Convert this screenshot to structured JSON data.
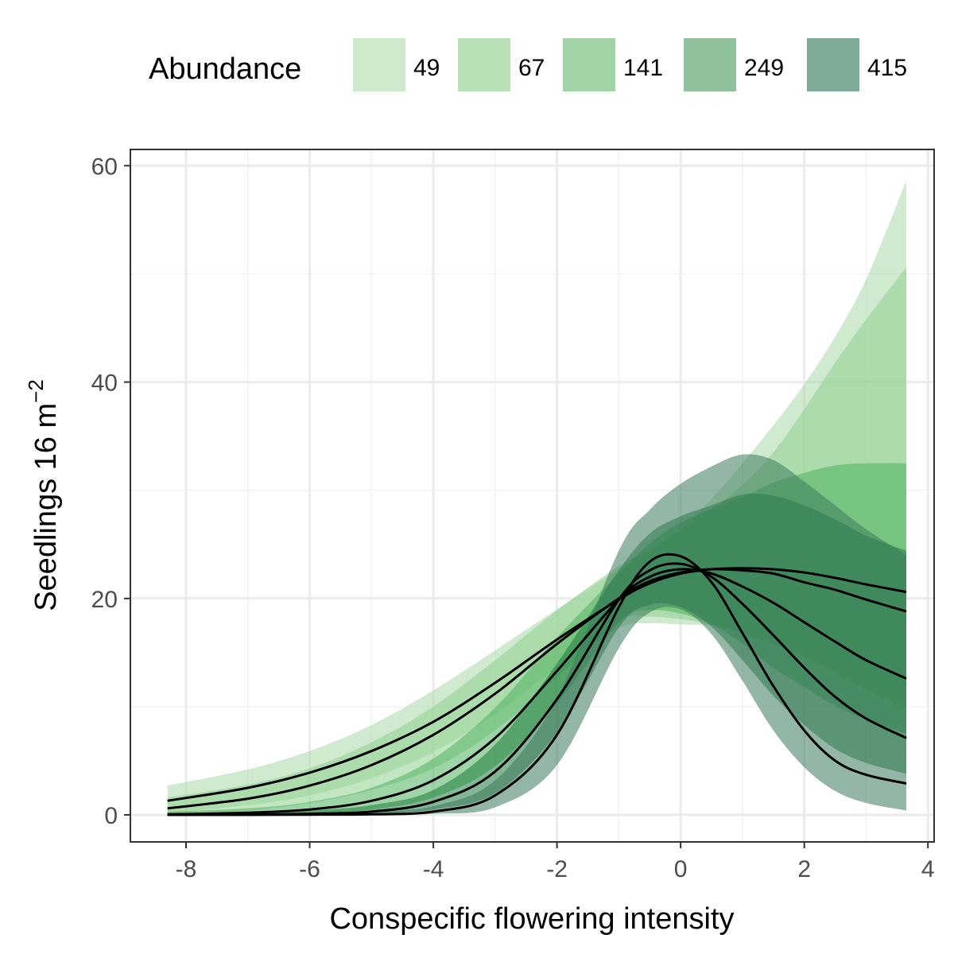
{
  "chart_data": {
    "type": "area",
    "xlabel": "Conspecific flowering intensity",
    "ylabel_main": "Seedlings 16 m",
    "ylabel_sup": "−2",
    "xlim": [
      -8.9,
      4.1
    ],
    "ylim": [
      -2.5,
      61.5
    ],
    "x_ticks": [
      -8,
      -6,
      -4,
      -2,
      0,
      2,
      4
    ],
    "x_tick_labels": [
      "-8",
      "-6",
      "-4",
      "-2",
      "0",
      "2",
      "4"
    ],
    "y_ticks": [
      0,
      20,
      40,
      60
    ],
    "y_tick_labels": [
      "0",
      "20",
      "40",
      "60"
    ],
    "grid": true,
    "legend": {
      "title": "Abundance",
      "position": "top",
      "entries": [
        "49",
        "67",
        "141",
        "249",
        "415"
      ],
      "colors": [
        "#cfe9cd",
        "#b9e0b7",
        "#a2d3a7",
        "#8fc19d",
        "#7eab97"
      ]
    },
    "band_opacity": 0.55,
    "line_color": "#000000",
    "series": [
      {
        "name": "49",
        "color": "#a8d9a5",
        "x": [
          -8.3,
          -7,
          -6,
          -5,
          -4,
          -3,
          -2,
          -1,
          -0.5,
          0,
          0.5,
          1,
          1.5,
          2,
          2.5,
          3,
          3.65
        ],
        "y": [
          1.3,
          2.5,
          3.9,
          5.9,
          8.6,
          12.2,
          16.2,
          19.9,
          21.4,
          22.3,
          22.7,
          22.8,
          22.7,
          22.4,
          21.9,
          21.3,
          20.6
        ],
        "lower": [
          0.2,
          0.9,
          1.8,
          3.4,
          5.8,
          9.3,
          13.6,
          17.3,
          17.7,
          17.6,
          17.5,
          17.0,
          16.3,
          15.2,
          13.8,
          12.3,
          10.5
        ],
        "upper": [
          2.7,
          4.2,
          5.9,
          8.3,
          11.5,
          15.2,
          19.0,
          22.7,
          24.3,
          26.3,
          29.2,
          32.5,
          36.0,
          39.8,
          44.2,
          49.5,
          58.6
        ]
      },
      {
        "name": "67",
        "color": "#8fd08f",
        "x": [
          -8.3,
          -7,
          -6,
          -5,
          -4,
          -3,
          -2,
          -1,
          -0.5,
          0,
          0.5,
          1,
          1.5,
          2,
          2.5,
          3,
          3.65
        ],
        "y": [
          0.6,
          1.5,
          2.7,
          4.6,
          7.4,
          11.2,
          15.8,
          20.0,
          21.6,
          22.4,
          22.7,
          22.6,
          22.3,
          21.5,
          20.8,
          19.9,
          18.8
        ],
        "lower": [
          0.1,
          0.4,
          1.1,
          2.3,
          4.3,
          7.8,
          12.7,
          17.9,
          18.3,
          18.1,
          17.6,
          16.8,
          15.8,
          14.5,
          13.1,
          11.6,
          9.8
        ],
        "upper": [
          1.6,
          2.8,
          4.3,
          6.7,
          10.0,
          14.3,
          18.9,
          23.0,
          24.5,
          26.3,
          28.2,
          30.5,
          33.5,
          37.5,
          41.8,
          45.8,
          50.6
        ]
      },
      {
        "name": "141",
        "color": "#4fb35e",
        "x": [
          -8.3,
          -7,
          -6,
          -5,
          -4,
          -3,
          -2,
          -1,
          -0.5,
          0,
          0.5,
          1,
          1.5,
          2,
          2.5,
          3,
          3.65
        ],
        "y": [
          0.05,
          0.2,
          0.5,
          1.3,
          3.2,
          7.1,
          13.3,
          19.9,
          22.0,
          22.7,
          22.3,
          21.1,
          19.6,
          17.8,
          16.0,
          14.3,
          12.6
        ],
        "lower": [
          0.0,
          0.05,
          0.15,
          0.5,
          1.6,
          4.5,
          10.3,
          17.8,
          18.9,
          18.6,
          17.6,
          15.8,
          13.6,
          11.8,
          10.1,
          8.8,
          7.5
        ],
        "upper": [
          0.3,
          0.6,
          1.2,
          2.5,
          5.2,
          9.9,
          16.4,
          22.3,
          25.1,
          27.0,
          28.3,
          29.4,
          30.7,
          31.6,
          32.3,
          32.5,
          32.5
        ]
      },
      {
        "name": "249",
        "color": "#1e7a3c",
        "x": [
          -8.3,
          -7,
          -6,
          -5,
          -4,
          -3,
          -2,
          -1,
          -0.5,
          0,
          0.5,
          1,
          1.5,
          2,
          2.5,
          3,
          3.65
        ],
        "y": [
          0.0,
          0.02,
          0.1,
          0.3,
          1.2,
          4.0,
          10.7,
          19.9,
          22.6,
          23.2,
          22.0,
          19.5,
          16.6,
          13.6,
          10.9,
          8.9,
          7.1
        ],
        "lower": [
          0.0,
          0.0,
          0.03,
          0.1,
          0.5,
          2.0,
          7.6,
          17.3,
          19.4,
          19.2,
          17.4,
          14.3,
          11.0,
          8.3,
          6.1,
          4.8,
          3.8
        ],
        "upper": [
          0.05,
          0.15,
          0.4,
          0.9,
          2.3,
          6.5,
          14.0,
          22.6,
          26.0,
          27.6,
          28.6,
          29.6,
          29.5,
          28.6,
          27.3,
          25.8,
          24.4
        ]
      },
      {
        "name": "415",
        "color": "#3d7a5c",
        "x": [
          -8.3,
          -7,
          -6,
          -5,
          -4,
          -3,
          -2,
          -1,
          -0.5,
          0,
          0.5,
          1,
          1.5,
          2,
          2.5,
          3,
          3.65
        ],
        "y": [
          0.0,
          0.0,
          0.02,
          0.05,
          0.3,
          1.8,
          7.4,
          19.2,
          23.4,
          23.9,
          21.5,
          16.8,
          11.9,
          7.8,
          5.0,
          3.7,
          2.9
        ],
        "lower": [
          0.0,
          0.0,
          0.0,
          0.01,
          0.1,
          0.7,
          4.6,
          15.4,
          18.7,
          19.0,
          16.7,
          12.4,
          7.8,
          4.4,
          2.2,
          1.1,
          0.4
        ],
        "upper": [
          0.02,
          0.05,
          0.1,
          0.3,
          0.8,
          3.2,
          10.8,
          24.4,
          28.2,
          30.6,
          32.2,
          33.3,
          32.8,
          30.8,
          28.6,
          26.4,
          24.0
        ]
      }
    ]
  }
}
